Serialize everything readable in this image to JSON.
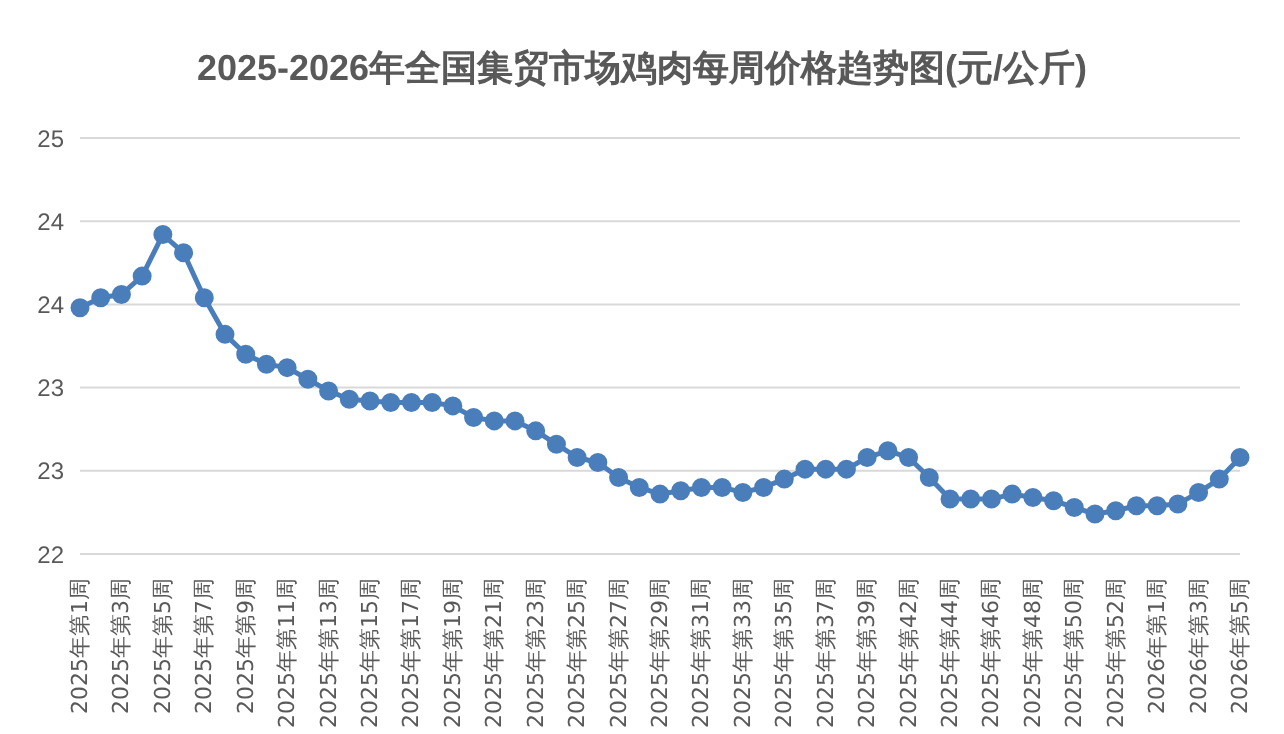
{
  "chart_data": {
    "type": "line",
    "title": "2025-2026年全国集贸市场鸡肉每周价格趋势图(元/公斤)",
    "categories": [
      "2025年第1周",
      null,
      "2025年第3周",
      null,
      "2025年第5周",
      null,
      "2025年第7周",
      null,
      "2025年第9周",
      null,
      "2025年第11周",
      null,
      "2025年第13周",
      null,
      "2025年第15周",
      null,
      "2025年第17周",
      null,
      "2025年第19周",
      null,
      "2025年第21周",
      null,
      "2025年第23周",
      null,
      "2025年第25周",
      null,
      "2025年第27周",
      null,
      "2025年第29周",
      null,
      "2025年第31周",
      null,
      "2025年第33周",
      null,
      "2025年第35周",
      null,
      "2025年第37周",
      null,
      "2025年第39周",
      null,
      "2025年第42周",
      null,
      "2025年第44周",
      null,
      "2025年第46周",
      null,
      "2025年第48周",
      null,
      "2025年第50周",
      null,
      "2025年第52周",
      null,
      "2026年第1周",
      null,
      "2026年第3周",
      null,
      "2026年第5周"
    ],
    "series": [
      {
        "color": "#4a7ebb",
        "values": [
          23.48,
          23.54,
          23.56,
          23.67,
          23.92,
          23.81,
          23.54,
          23.32,
          23.2,
          23.14,
          23.12,
          23.05,
          22.98,
          22.93,
          22.92,
          22.91,
          22.91,
          22.91,
          22.89,
          22.82,
          22.8,
          22.8,
          22.74,
          22.66,
          22.58,
          22.55,
          22.46,
          22.4,
          22.36,
          22.38,
          22.4,
          22.4,
          22.37,
          22.4,
          22.45,
          22.51,
          22.51,
          22.51,
          22.58,
          22.62,
          22.58,
          22.46,
          22.33,
          22.33,
          22.33,
          22.36,
          22.34,
          22.32,
          22.28,
          22.24,
          22.26,
          22.29,
          22.29,
          22.3,
          22.37,
          22.45,
          22.58
        ]
      }
    ],
    "ylim": [
      22,
      24.5
    ],
    "yticks": [
      22,
      {
        "value": 22.5,
        "label": "23"
      },
      23,
      {
        "value": 23.5,
        "label": "24"
      },
      24,
      {
        "value": 24.5,
        "label": "25"
      }
    ],
    "grid": "y",
    "marker": "circle",
    "line_style": "solid",
    "legend": false
  }
}
